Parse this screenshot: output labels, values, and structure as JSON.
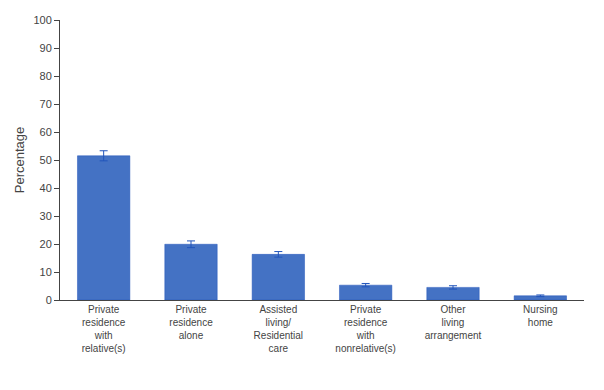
{
  "chart_data": {
    "type": "bar",
    "categories": [
      "Private\nresidence\nwith\nrelative(s)",
      "Private\nresidence\nalone",
      "Assisted\nliving/\nResidential\ncare",
      "Private\nresidence\nwith\nnonrelative(s)",
      "Other\nliving\narrangement",
      "Nursing\nhome"
    ],
    "values": [
      51.5,
      19.9,
      16.3,
      5.3,
      4.5,
      1.5
    ],
    "errors": [
      1.8,
      1.2,
      1.0,
      0.6,
      0.6,
      0.3
    ],
    "color": "#4472C4",
    "ylabel": "Percentage",
    "ylim": [
      0,
      100
    ],
    "yticks": [
      0,
      10,
      20,
      30,
      40,
      50,
      60,
      70,
      80,
      90,
      100
    ],
    "grid": false
  }
}
